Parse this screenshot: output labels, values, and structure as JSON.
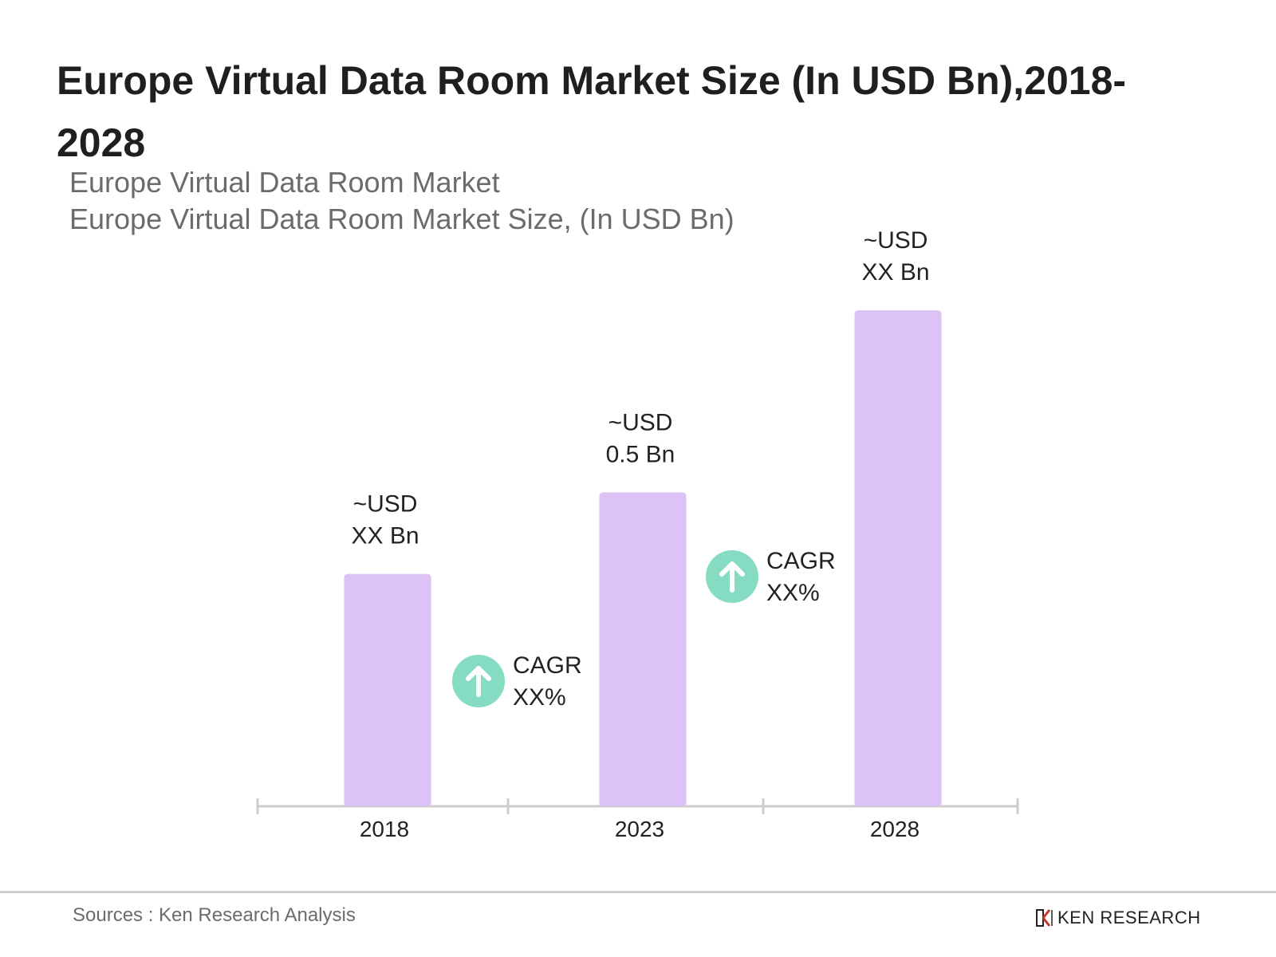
{
  "title": "Europe Virtual Data Room Market Size (In USD Bn),2018-2028",
  "subtitle1": "Europe Virtual Data Room Market",
  "subtitle2": "Europe Virtual Data Room Market Size, (In USD Bn)",
  "source": "Sources : Ken Research Analysis",
  "brand": "KEN RESEARCH",
  "chart_data": {
    "type": "bar",
    "categories": [
      "2018",
      "2023",
      "2028"
    ],
    "values": [
      0.37,
      0.5,
      0.79
    ],
    "data_labels": [
      [
        "~USD",
        "XX Bn"
      ],
      [
        "~USD",
        "0.5 Bn"
      ],
      [
        "~USD",
        "XX Bn"
      ]
    ],
    "annotations": [
      {
        "between": [
          "2018",
          "2023"
        ],
        "lines": [
          "CAGR",
          "XX%"
        ],
        "icon": "arrow-up-circle-icon"
      },
      {
        "between": [
          "2023",
          "2028"
        ],
        "lines": [
          "CAGR",
          "XX%"
        ],
        "icon": "arrow-up-circle-icon"
      }
    ],
    "ylim": [
      0,
      0.79
    ],
    "grid": false,
    "y_axis_visible": false,
    "colors": {
      "bar": "#dcc2f5",
      "axis": "#cccccc",
      "badge": "#86dcc3",
      "label": "#222222"
    }
  }
}
